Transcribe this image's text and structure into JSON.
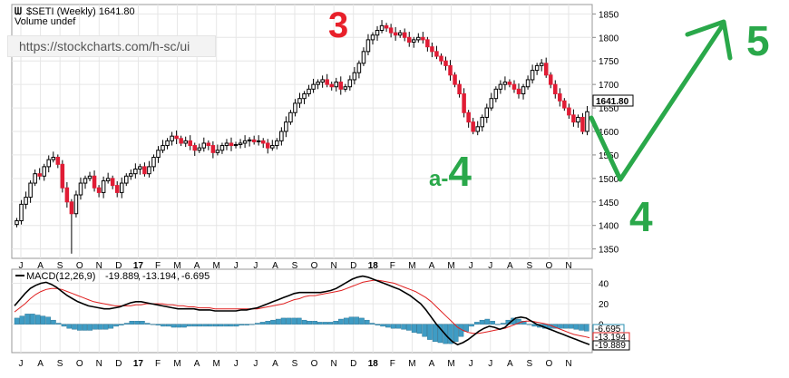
{
  "header": {
    "title": "$SETI (Weekly) 1641.80",
    "volume_note": "Volume undef"
  },
  "url_bar": {
    "url": "https://stockcharts.com/h-sc/ui"
  },
  "annotations": {
    "wave_3": "3",
    "wave_a4_prefix": "a-",
    "wave_a4": "4",
    "wave_4": "4",
    "wave_5": "5",
    "wave_red_color": "#e8202a",
    "wave_green_color": "#2aa84a"
  },
  "price_panel": {
    "last_label": "1641.80",
    "y_ticks": [
      "1850",
      "1800",
      "1750",
      "1700",
      "1650",
      "1600",
      "1550",
      "1500",
      "1450",
      "1400",
      "1350"
    ]
  },
  "macd_panel": {
    "title_prefix": "MACD(12,26,9)",
    "macd_value": "-19.889",
    "signal_value": "-13.194",
    "hist_value": "-6.695",
    "y_ticks": [
      "40",
      "20",
      "0"
    ],
    "right_labels": [
      "-6.695",
      "-13.194",
      "-19.889"
    ]
  },
  "x_axis": {
    "months": [
      "J",
      "A",
      "S",
      "O",
      "N",
      "D",
      "17",
      "F",
      "M",
      "A",
      "M",
      "J",
      "J",
      "A",
      "S",
      "O",
      "N",
      "D",
      "18",
      "F",
      "M",
      "A",
      "M",
      "J",
      "J",
      "A",
      "S",
      "O",
      "N"
    ]
  },
  "chart_data": [
    {
      "type": "candlestick",
      "title": "$SETI (Weekly) 1641.80",
      "ylim": [
        1330,
        1870
      ],
      "y_ticks": [
        1350,
        1400,
        1450,
        1500,
        1550,
        1600,
        1650,
        1700,
        1750,
        1800,
        1850
      ],
      "x_ticks": [
        "J",
        "A",
        "S",
        "O",
        "N",
        "D",
        "17",
        "F",
        "M",
        "A",
        "M",
        "J",
        "J",
        "A",
        "S",
        "O",
        "N",
        "D",
        "18",
        "F",
        "M",
        "A",
        "M",
        "J",
        "J",
        "A",
        "S",
        "O",
        "N"
      ],
      "grid": true,
      "closes": [
        1410,
        1445,
        1460,
        1490,
        1510,
        1505,
        1525,
        1540,
        1545,
        1530,
        1480,
        1450,
        1425,
        1465,
        1490,
        1500,
        1505,
        1480,
        1470,
        1495,
        1500,
        1485,
        1470,
        1490,
        1505,
        1510,
        1520,
        1525,
        1510,
        1525,
        1545,
        1560,
        1570,
        1580,
        1590,
        1585,
        1575,
        1580,
        1570,
        1560,
        1565,
        1575,
        1570,
        1555,
        1560,
        1570,
        1575,
        1570,
        1572,
        1575,
        1580,
        1582,
        1578,
        1580,
        1575,
        1565,
        1570,
        1580,
        1600,
        1620,
        1640,
        1660,
        1670,
        1680,
        1690,
        1700,
        1705,
        1710,
        1700,
        1695,
        1705,
        1690,
        1695,
        1710,
        1725,
        1745,
        1770,
        1795,
        1805,
        1815,
        1825,
        1820,
        1810,
        1805,
        1810,
        1800,
        1790,
        1795,
        1800,
        1795,
        1780,
        1770,
        1760,
        1750,
        1740,
        1720,
        1700,
        1680,
        1640,
        1620,
        1600,
        1610,
        1630,
        1650,
        1670,
        1690,
        1700,
        1705,
        1700,
        1690,
        1680,
        1695,
        1710,
        1730,
        1740,
        1745,
        1720,
        1700,
        1680,
        1665,
        1650,
        1635,
        1620,
        1630,
        1600,
        1642
      ],
      "last": 1641.8
    },
    {
      "type": "line",
      "title": "MACD(12,26,9) -19.889, -13.194, -6.695",
      "ylim": [
        -26,
        52
      ],
      "y_ticks": [
        0,
        20,
        40
      ],
      "series": [
        {
          "name": "MACD(12,26,9)",
          "values": [
            18,
            24,
            30,
            35,
            38,
            40,
            41,
            39,
            36,
            32,
            28,
            25,
            22,
            20,
            18,
            17,
            16,
            15,
            15,
            16,
            17,
            19,
            21,
            22,
            22,
            21,
            20,
            19,
            18,
            17,
            16,
            15,
            15,
            15,
            15,
            14,
            14,
            14,
            13,
            13,
            13,
            13,
            13,
            14,
            14,
            15,
            16,
            18,
            20,
            22,
            24,
            26,
            28,
            30,
            31,
            31,
            31,
            31,
            31,
            32,
            33,
            35,
            38,
            41,
            44,
            46,
            47,
            46,
            44,
            42,
            40,
            38,
            36,
            34,
            31,
            28,
            24,
            20,
            14,
            7,
            0,
            -6,
            -12,
            -17,
            -20,
            -18,
            -15,
            -11,
            -7,
            -4,
            -2,
            -3,
            -5,
            -3,
            2,
            6,
            7,
            6,
            3,
            0,
            -2,
            -4,
            -6,
            -8,
            -10,
            -12,
            -14,
            -16,
            -18,
            -19.889
          ]
        },
        {
          "name": "signal",
          "values": [
            12,
            16,
            20,
            25,
            29,
            32,
            34,
            35,
            35,
            34,
            32,
            30,
            28,
            26,
            24,
            22,
            21,
            20,
            19,
            18,
            18,
            18,
            18,
            19,
            19,
            20,
            20,
            20,
            20,
            19,
            19,
            18,
            18,
            17,
            17,
            16,
            16,
            16,
            15,
            15,
            15,
            15,
            15,
            15,
            15,
            15,
            15,
            16,
            17,
            18,
            19,
            20,
            22,
            24,
            25,
            27,
            28,
            28,
            29,
            30,
            31,
            32,
            33,
            35,
            37,
            39,
            41,
            42,
            43,
            43,
            42,
            41,
            40,
            38,
            36,
            34,
            32,
            29,
            26,
            22,
            17,
            12,
            7,
            2,
            -3,
            -6,
            -8,
            -9,
            -9,
            -8,
            -7,
            -6,
            -5,
            -4,
            -2,
            0,
            2,
            3,
            3,
            2,
            1,
            0,
            -2,
            -4,
            -6,
            -8,
            -10,
            -11,
            -12,
            -13.194
          ]
        },
        {
          "name": "histogram",
          "values": [
            6,
            8,
            10,
            10,
            9,
            8,
            7,
            4,
            1,
            -2,
            -4,
            -5,
            -6,
            -6,
            -6,
            -5,
            -5,
            -5,
            -4,
            -2,
            -1,
            1,
            3,
            3,
            3,
            1,
            0,
            -1,
            -2,
            -2,
            -3,
            -3,
            -3,
            -2,
            -2,
            -2,
            -2,
            -2,
            -2,
            -2,
            -2,
            -2,
            -2,
            -1,
            -1,
            0,
            1,
            2,
            3,
            4,
            5,
            6,
            6,
            6,
            6,
            4,
            3,
            3,
            2,
            2,
            2,
            3,
            5,
            6,
            7,
            7,
            6,
            4,
            1,
            -1,
            -2,
            -3,
            -4,
            -4,
            -5,
            -6,
            -8,
            -9,
            -12,
            -15,
            -17,
            -18,
            -19,
            -19,
            -17,
            -12,
            -7,
            -2,
            2,
            4,
            5,
            3,
            0,
            1,
            4,
            6,
            5,
            3,
            0,
            -2,
            -3,
            -4,
            -4,
            -4,
            -4,
            -4,
            -4,
            -5,
            -6,
            -6.695
          ]
        }
      ]
    }
  ]
}
